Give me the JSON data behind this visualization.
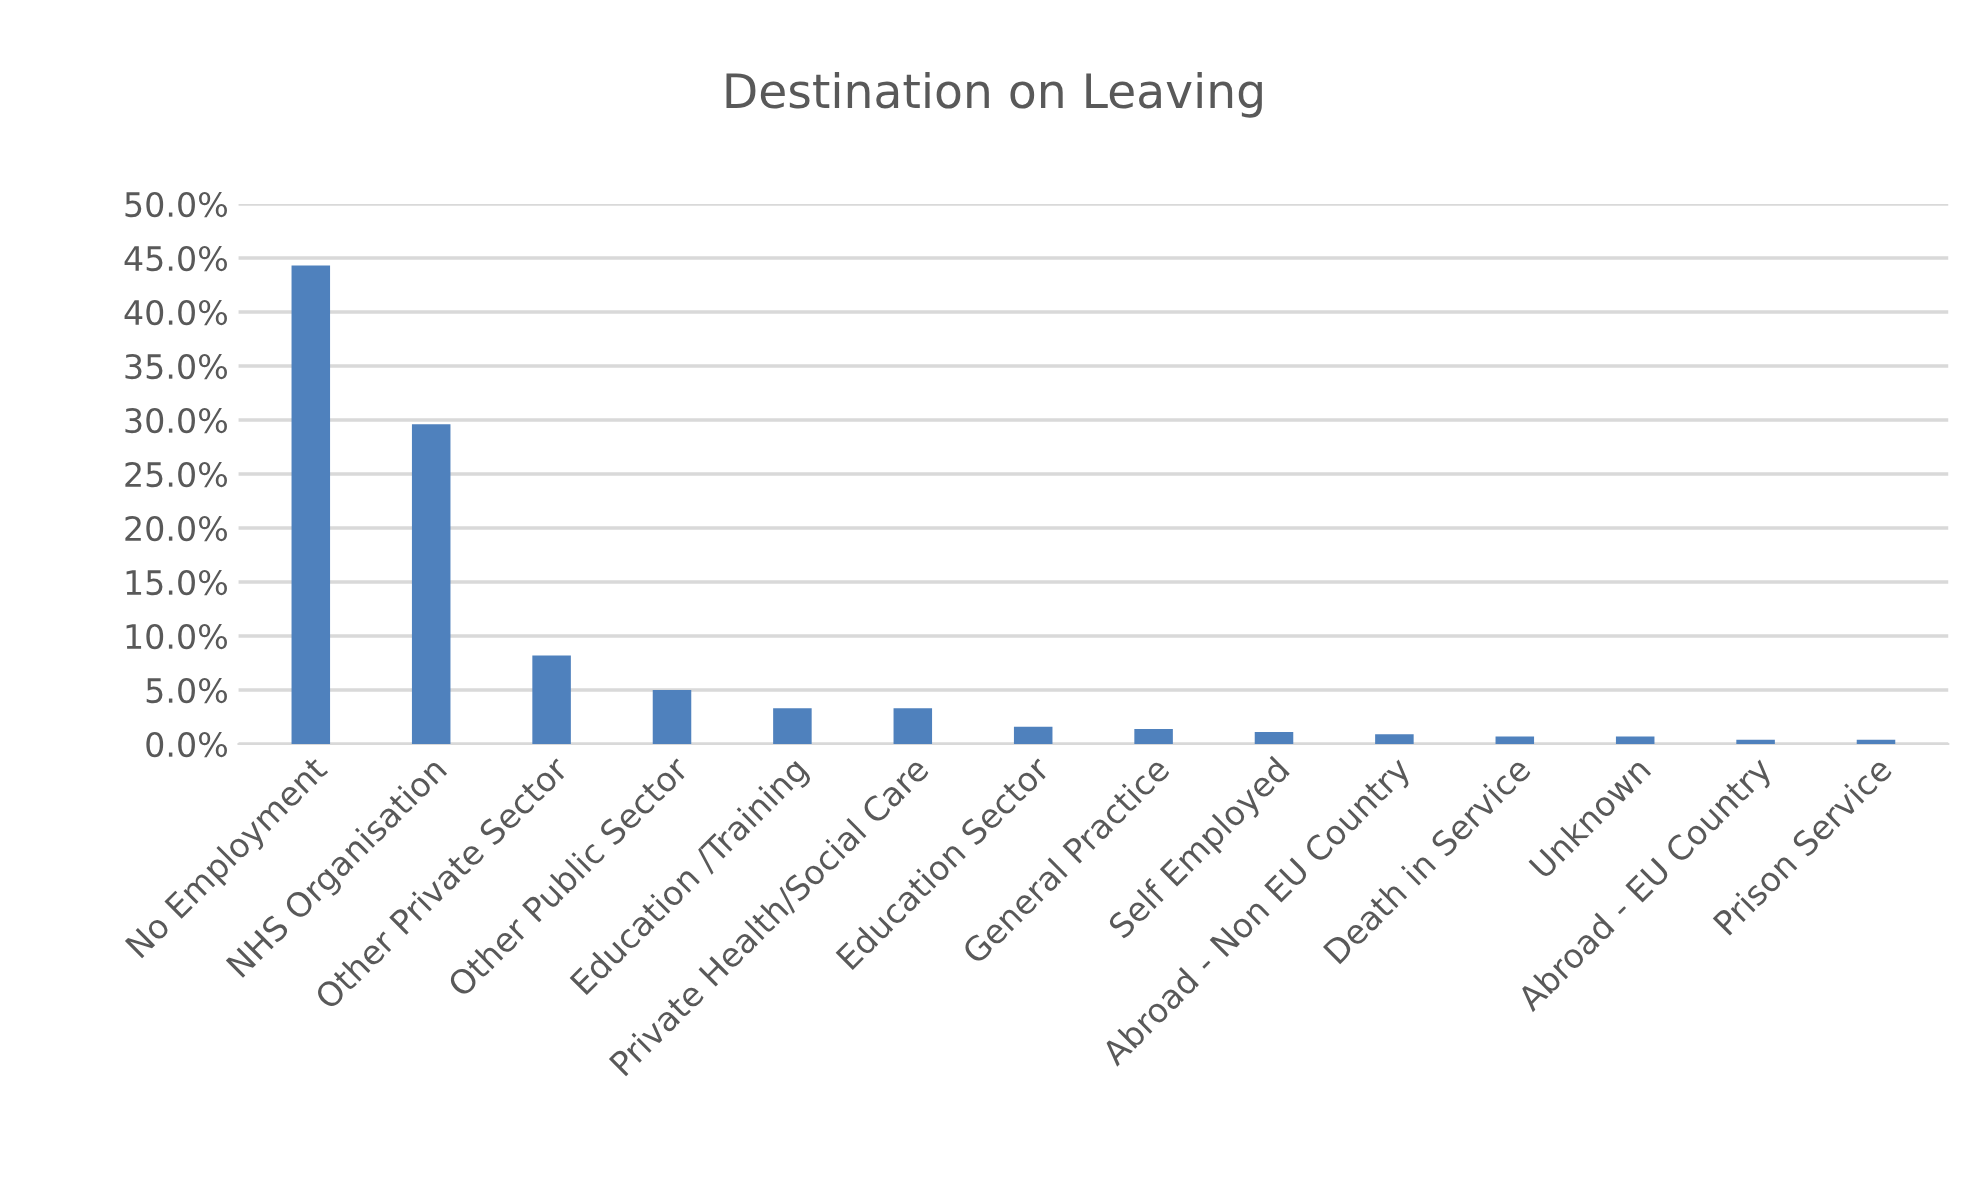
{
  "chart_data": {
    "type": "bar",
    "title": "Destination on Leaving",
    "categories": [
      "No Employment",
      "NHS Organisation",
      "Other Private Sector",
      "Other Public Sector",
      "Education /Training",
      "Private Health/Social Care",
      "Education Sector",
      "General Practice",
      "Self Employed",
      "Abroad - Non EU Country",
      "Death in Service",
      "Unknown",
      "Abroad - EU Country",
      "Prison Service"
    ],
    "values": [
      44.3,
      29.6,
      8.2,
      5.0,
      3.3,
      3.3,
      1.6,
      1.4,
      1.1,
      0.9,
      0.7,
      0.7,
      0.4,
      0.4
    ],
    "color": "#4f81bd",
    "ylim": [
      0,
      50
    ],
    "yticks": [
      {
        "value": 0,
        "label": "0.0%"
      },
      {
        "value": 5,
        "label": "5.0%"
      },
      {
        "value": 10,
        "label": "10.0%"
      },
      {
        "value": 15,
        "label": "15.0%"
      },
      {
        "value": 20,
        "label": "20.0%"
      },
      {
        "value": 25,
        "label": "25.0%"
      },
      {
        "value": 30,
        "label": "30.0%"
      },
      {
        "value": 35,
        "label": "35.0%"
      },
      {
        "value": 40,
        "label": "40.0%"
      },
      {
        "value": 45,
        "label": "45.0%"
      },
      {
        "value": 50,
        "label": "50.0%"
      }
    ],
    "grid": "y",
    "legend": false
  }
}
